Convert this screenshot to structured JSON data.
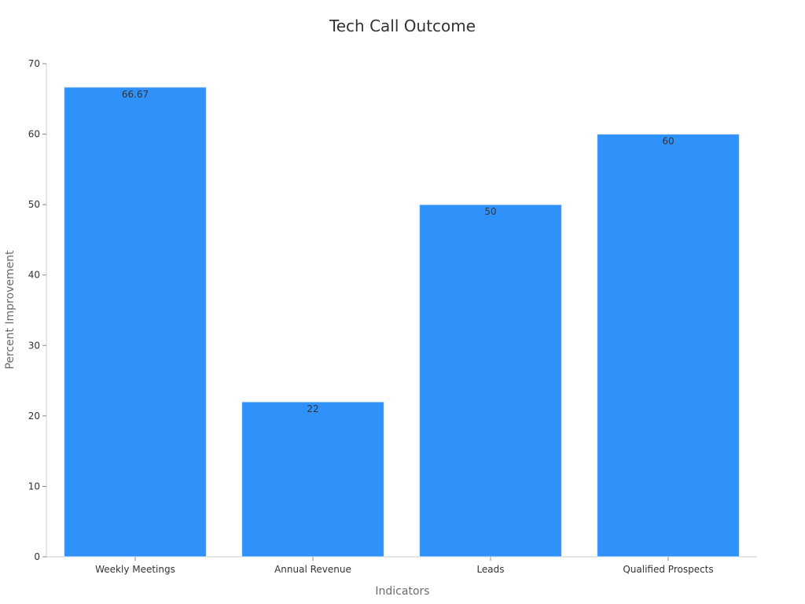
{
  "chart_data": {
    "type": "bar",
    "title": "Tech Call Outcome",
    "xlabel": "Indicators",
    "ylabel": "Percent Improvement",
    "categories": [
      "Weekly Meetings",
      "Annual Revenue",
      "Leads",
      "Qualified Prospects"
    ],
    "values": [
      66.67,
      22,
      50,
      60
    ],
    "data_labels": [
      "66.67",
      "22",
      "50",
      "60"
    ],
    "ylim": [
      0,
      70
    ],
    "yticks": [
      0,
      10,
      20,
      30,
      40,
      50,
      60,
      70
    ],
    "ytick_labels": [
      "0",
      "10",
      "20",
      "30",
      "40",
      "50",
      "60",
      "70"
    ],
    "grid": false,
    "legend": "none",
    "bar_color": "#2f92fb",
    "bar_edge_color": "#dfe9f3",
    "axis_color": "#cccccc"
  }
}
